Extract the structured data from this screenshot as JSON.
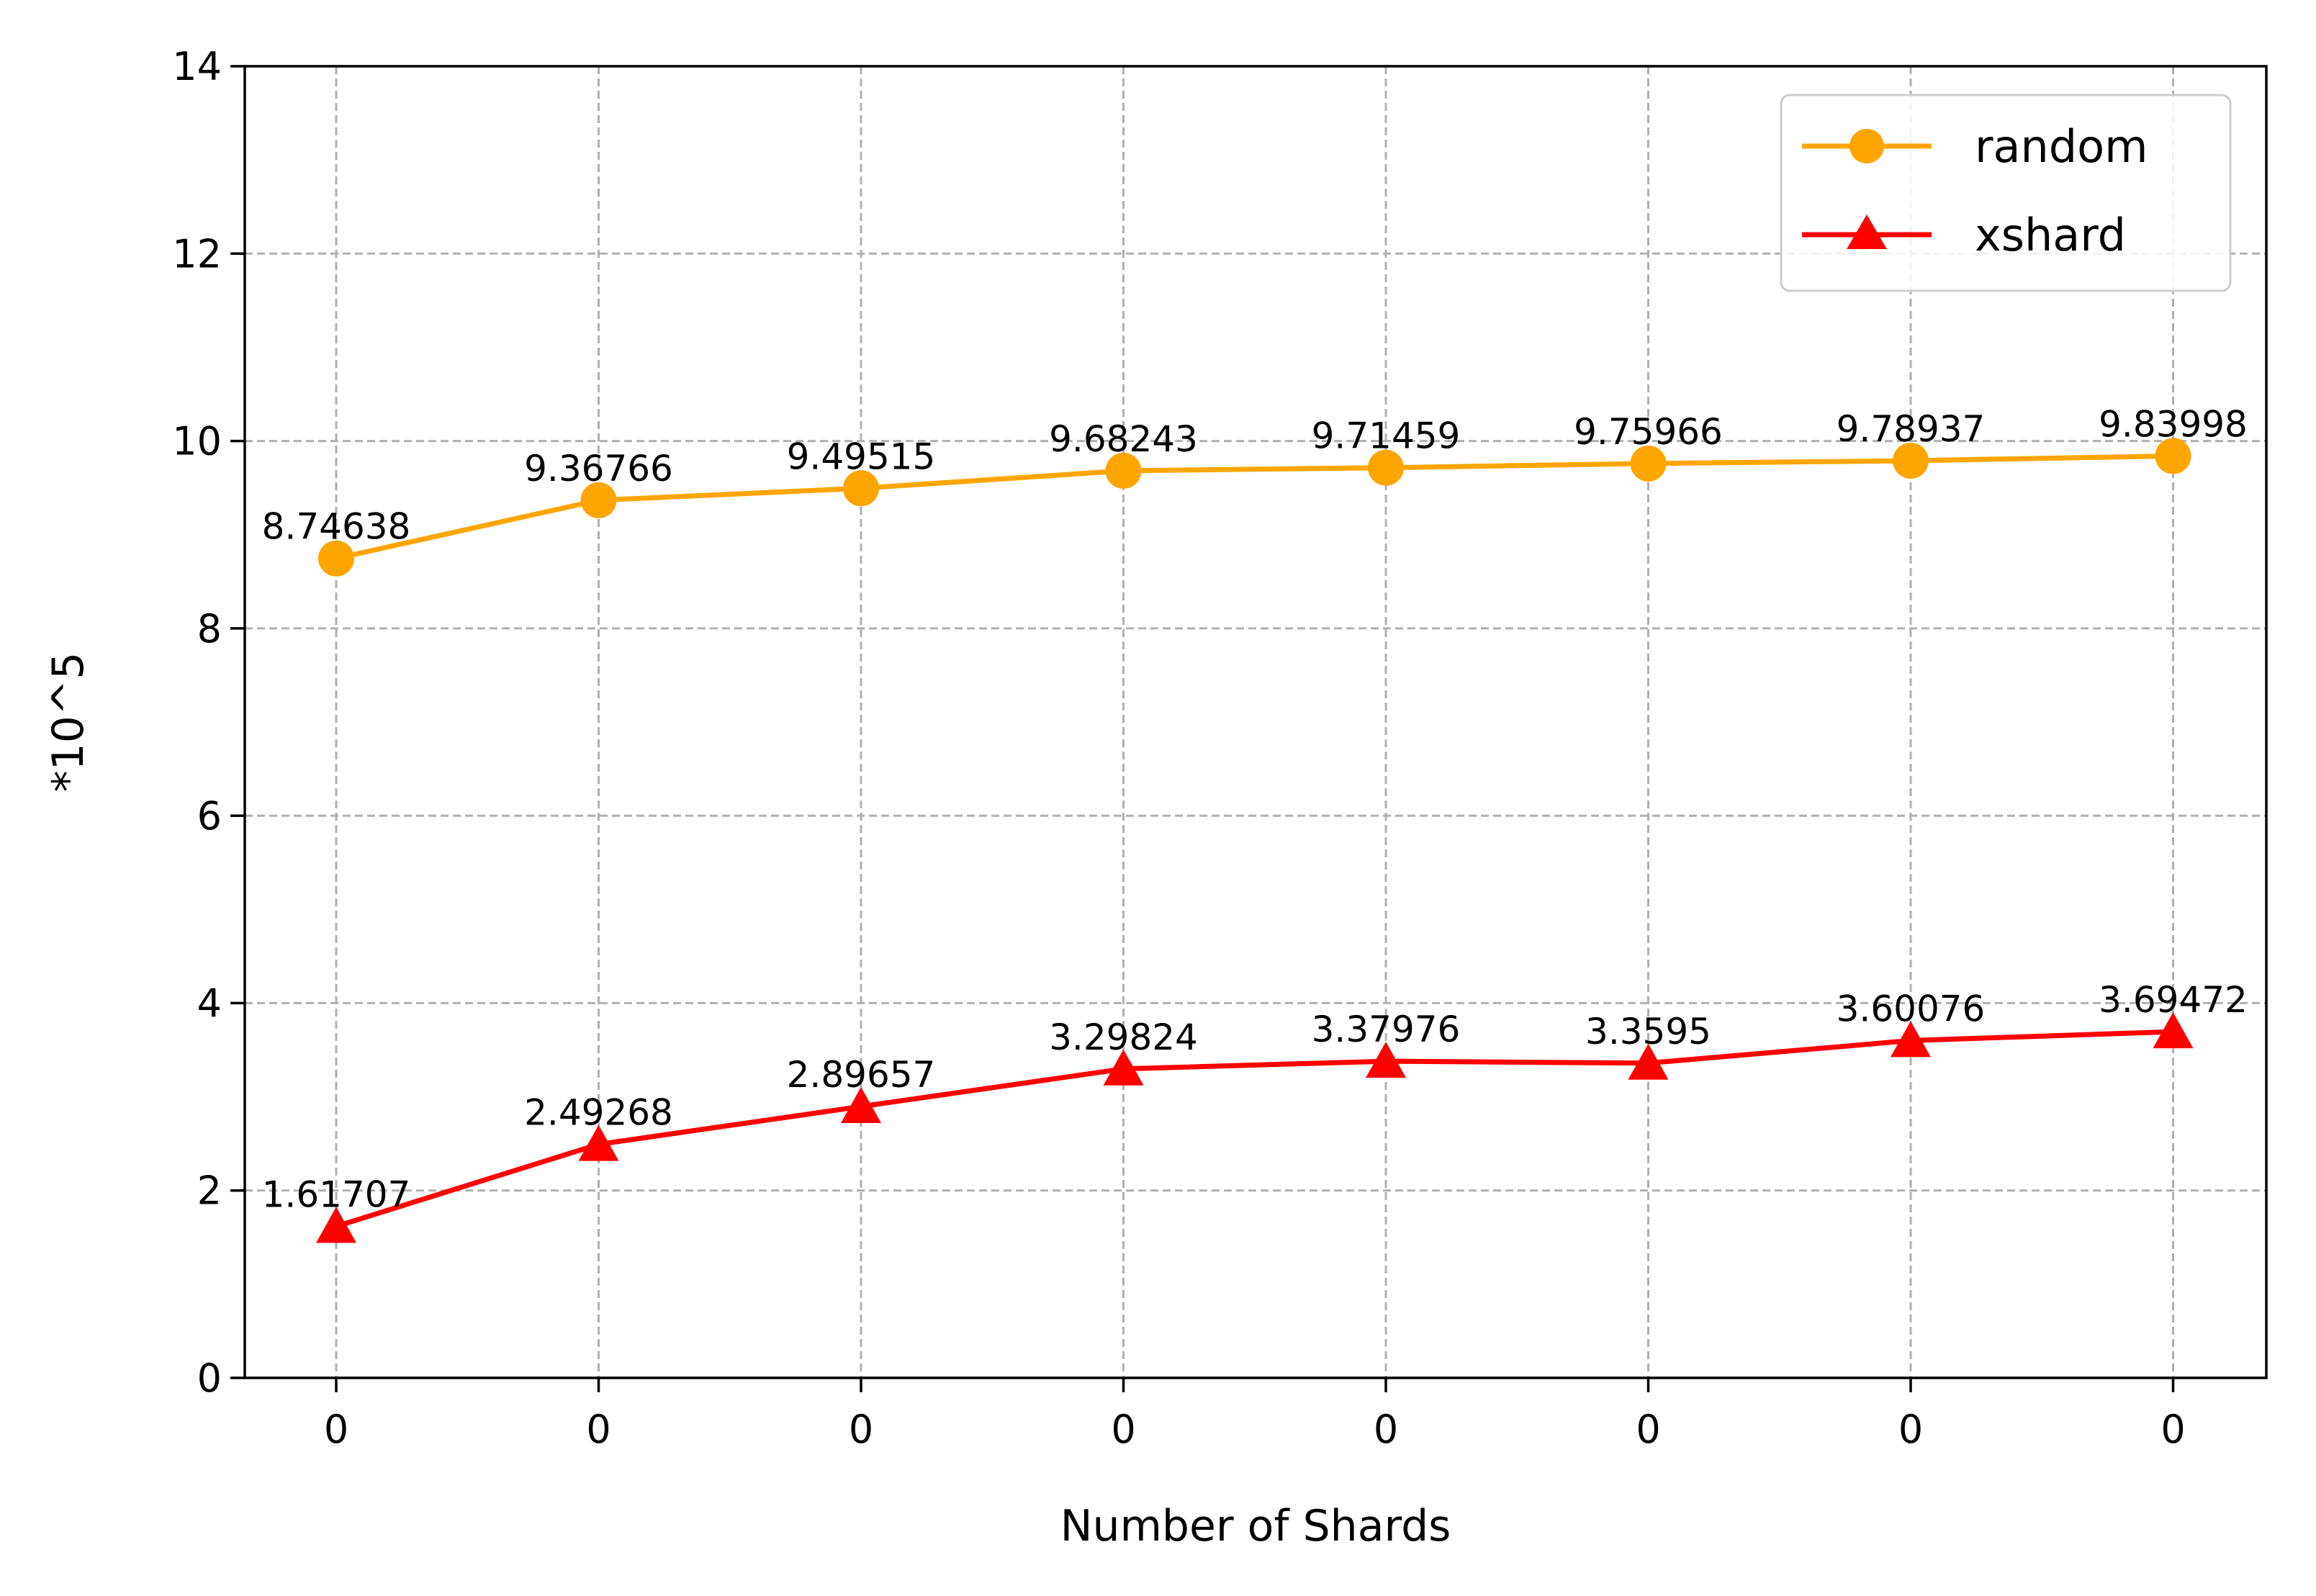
{
  "chart_data": {
    "type": "line",
    "categories": [
      "0",
      "0",
      "0",
      "0",
      "0",
      "0",
      "0",
      "0"
    ],
    "xlabel": "Number of Shards",
    "ylabel": "*10^5",
    "ylim": [
      0,
      14
    ],
    "yticks": [
      0,
      2,
      4,
      6,
      8,
      10,
      12,
      14
    ],
    "grid": true,
    "legend_position": "top-right",
    "series": [
      {
        "name": "random",
        "color": "#FFA500",
        "marker": "circle",
        "values": [
          8.74638,
          9.36766,
          9.49515,
          9.68243,
          9.71459,
          9.75966,
          9.78937,
          9.83998
        ],
        "labels": [
          "8.74638",
          "9.36766",
          "9.49515",
          "9.68243",
          "9.71459",
          "9.75966",
          "9.78937",
          "9.83998"
        ]
      },
      {
        "name": "xshard",
        "color": "#FF0000",
        "marker": "triangle",
        "values": [
          1.61707,
          2.49268,
          2.89657,
          3.29824,
          3.37976,
          3.3595,
          3.60076,
          3.69472
        ],
        "labels": [
          "1.61707",
          "2.49268",
          "2.89657",
          "3.29824",
          "3.37976",
          "3.3595",
          "3.60076",
          "3.69472"
        ]
      }
    ]
  }
}
